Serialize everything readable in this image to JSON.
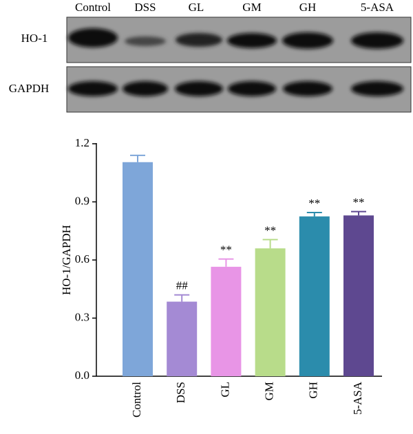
{
  "blot": {
    "lanes": [
      "Control",
      "DSS",
      "GL",
      "GM",
      "GH",
      "5-ASA"
    ],
    "rows": [
      "HO-1",
      "GAPDH"
    ]
  },
  "chart_data": {
    "type": "bar",
    "categories": [
      "Control",
      "DSS",
      "GL",
      "GM",
      "GH",
      "5-ASA"
    ],
    "values": [
      1.105,
      0.385,
      0.565,
      0.66,
      0.825,
      0.83
    ],
    "errors": [
      0.035,
      0.035,
      0.04,
      0.045,
      0.02,
      0.02
    ],
    "annotations": [
      null,
      "##",
      "**",
      "**",
      "**",
      "**"
    ],
    "colors": [
      "#7ea6d9",
      "#a48ad4",
      "#e895e6",
      "#b8dc8a",
      "#2b8cac",
      "#5e4890"
    ],
    "y_label": "HO-1/GAPDH",
    "ylim": [
      0,
      1.2
    ],
    "yticks": [
      {
        "value": 0,
        "label": "0.0"
      },
      0.3,
      0.6,
      0.9,
      1.2
    ]
  }
}
